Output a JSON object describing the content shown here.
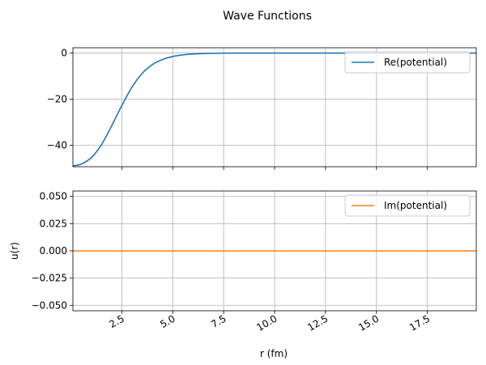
{
  "chart_data": {
    "suptitle": "Wave Functions",
    "xlabel": "r (fm)",
    "xlim": [
      0.1,
      19.9
    ],
    "xticks": [
      2.5,
      5.0,
      7.5,
      10.0,
      12.5,
      15.0,
      17.5
    ],
    "xtick_labels": [
      "2.5",
      "5.0",
      "7.5",
      "10.0",
      "12.5",
      "15.0",
      "17.5"
    ],
    "grid": true,
    "legend_placement": "upper right",
    "subplots": [
      {
        "type": "line",
        "ylabel": "",
        "ylim": [
          -49.3,
          2.3
        ],
        "yticks": [
          0,
          -20,
          -40
        ],
        "ytick_labels": [
          "0",
          "−20",
          "−40"
        ],
        "series": [
          {
            "name": "Re(potential)",
            "color": "#1f77b4",
            "x": [
              0.1,
              0.5,
              1.0,
              1.5,
              2.0,
              2.5,
              3.0,
              3.5,
              4.0,
              4.5,
              5.0,
              5.5,
              6.0,
              7.0,
              8.0,
              10.0,
              12.5,
              15.0,
              17.5,
              19.9
            ],
            "y": [
              -48.9,
              -48.2,
              -45.4,
              -39.8,
              -31.6,
              -22.8,
              -14.8,
              -8.8,
              -5.0,
              -2.8,
              -1.5,
              -0.8,
              -0.4,
              -0.1,
              0.0,
              0.0,
              0.0,
              0.0,
              0.0,
              0.0
            ]
          }
        ]
      },
      {
        "type": "line",
        "ylabel": "u(r)",
        "ylim": [
          -0.055,
          0.055
        ],
        "yticks": [
          0.05,
          0.025,
          0.0,
          -0.025,
          -0.05
        ],
        "ytick_labels": [
          "0.050",
          "0.025",
          "0.000",
          "−0.025",
          "−0.050"
        ],
        "series": [
          {
            "name": "Im(potential)",
            "color": "#ff7f0e",
            "x": [
              0.1,
              19.9
            ],
            "y": [
              0.0,
              0.0
            ]
          }
        ]
      }
    ]
  }
}
